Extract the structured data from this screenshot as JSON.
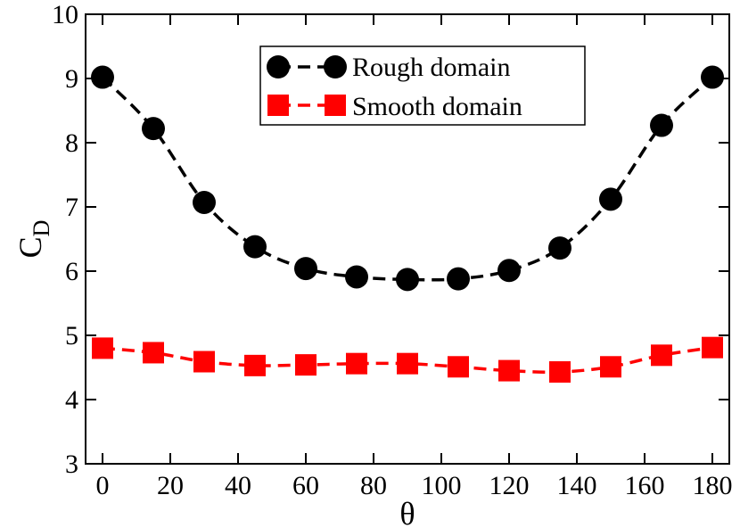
{
  "chart_data": {
    "type": "line",
    "xlabel": "θ",
    "ylabel": "C",
    "ylabel_sub": "D",
    "xlim": [
      -5,
      185
    ],
    "ylim": [
      3,
      10
    ],
    "xticks": [
      0,
      20,
      40,
      60,
      80,
      100,
      120,
      140,
      160,
      180
    ],
    "yticks": [
      3,
      4,
      5,
      6,
      7,
      8,
      9,
      10
    ],
    "grid": false,
    "legend_position": "top-right",
    "x": [
      0,
      15,
      30,
      45,
      60,
      75,
      90,
      105,
      120,
      135,
      150,
      165,
      180
    ],
    "series": [
      {
        "name": "Rough domain",
        "marker": "circle",
        "color": "#000000",
        "line": "dashed",
        "values": [
          9.02,
          8.22,
          7.07,
          6.38,
          6.04,
          5.91,
          5.87,
          5.88,
          6.01,
          6.36,
          7.12,
          8.27,
          9.02
        ]
      },
      {
        "name": "Smooth domain",
        "marker": "square",
        "color": "#ff0000",
        "line": "dashed",
        "values": [
          4.8,
          4.73,
          4.59,
          4.53,
          4.54,
          4.56,
          4.56,
          4.51,
          4.45,
          4.43,
          4.51,
          4.69,
          4.81
        ]
      }
    ]
  }
}
